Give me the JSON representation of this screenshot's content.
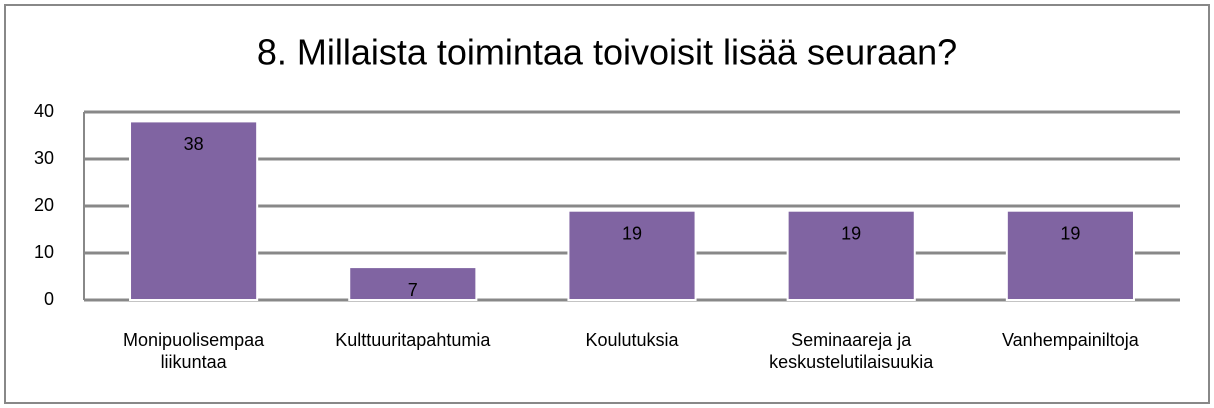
{
  "chart_data": {
    "type": "bar",
    "title": "8. Millaista toimintaa toivoisit lisää seuraan?",
    "categories": [
      "Monipuolisempaa liikuntaa",
      "Kulttuuritapahtumia",
      "Koulutuksia",
      "Seminaareja ja keskustelutilaisuukia",
      "Vanhempainiltoja"
    ],
    "values": [
      38,
      7,
      19,
      19,
      19
    ],
    "color": "#8064a2",
    "ylim": [
      0,
      40
    ],
    "yticks": [
      0,
      10,
      20,
      30,
      40
    ],
    "grid": true
  }
}
